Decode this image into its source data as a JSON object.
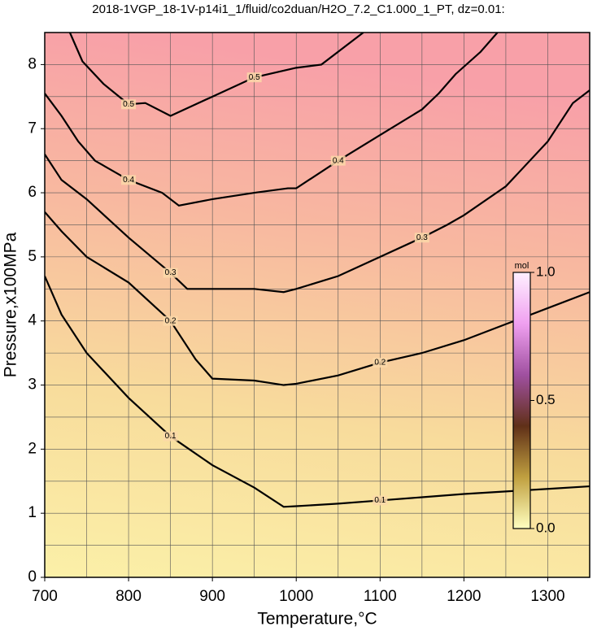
{
  "chart_data": {
    "type": "contour",
    "title": "2018-1VGP_18-1V-p14i1_1/fluid/co2duan/H2O_7.2_C1.000_1_PT, dz=0.01:",
    "x_label": "Temperature,°C",
    "y_label": "Pressure,x100MPa",
    "xlim": [
      700,
      1350
    ],
    "ylim": [
      0,
      8.5
    ],
    "xticks": [
      700,
      800,
      900,
      1000,
      1100,
      1200,
      1300
    ],
    "yticks": [
      0,
      1,
      2,
      3,
      4,
      5,
      6,
      7,
      8
    ],
    "xgrid": [
      700,
      750,
      800,
      850,
      900,
      950,
      1000,
      1050,
      1100,
      1150,
      1200,
      1250,
      1300,
      1350
    ],
    "ygrid": [
      0,
      0.5,
      1,
      1.5,
      2,
      2.5,
      3,
      3.5,
      4,
      4.5,
      5,
      5.5,
      6,
      6.5,
      7,
      7.5,
      8,
      8.5
    ],
    "grid": true,
    "contours": [
      {
        "level": 0.1,
        "x": [
          700,
          720,
          750,
          800,
          850,
          900,
          950,
          985,
          1000,
          1050,
          1100,
          1150,
          1200,
          1250,
          1300,
          1350
        ],
        "y": [
          4.7,
          4.1,
          3.5,
          2.8,
          2.2,
          1.75,
          1.4,
          1.1,
          1.11,
          1.15,
          1.2,
          1.25,
          1.3,
          1.34,
          1.38,
          1.42
        ]
      },
      {
        "level": 0.2,
        "x": [
          700,
          720,
          750,
          800,
          850,
          880,
          900,
          950,
          985,
          1000,
          1050,
          1100,
          1150,
          1200,
          1250,
          1300,
          1350
        ],
        "y": [
          5.7,
          5.4,
          5.0,
          4.6,
          4.0,
          3.4,
          3.1,
          3.07,
          3.0,
          3.02,
          3.15,
          3.35,
          3.5,
          3.7,
          3.95,
          4.2,
          4.45
        ]
      },
      {
        "level": 0.3,
        "x": [
          700,
          720,
          750,
          800,
          850,
          870,
          900,
          950,
          985,
          1000,
          1050,
          1100,
          1150,
          1180,
          1200,
          1250,
          1300,
          1330,
          1350
        ],
        "y": [
          6.6,
          6.2,
          5.9,
          5.3,
          4.75,
          4.5,
          4.5,
          4.5,
          4.45,
          4.5,
          4.7,
          5.0,
          5.3,
          5.5,
          5.65,
          6.1,
          6.8,
          7.4,
          7.6
        ]
      },
      {
        "level": 0.4,
        "x": [
          700,
          720,
          740,
          760,
          800,
          840,
          860,
          900,
          950,
          990,
          1000,
          1050,
          1100,
          1150,
          1170,
          1190,
          1220,
          1240
        ],
        "y": [
          7.55,
          7.2,
          6.8,
          6.5,
          6.2,
          6.0,
          5.8,
          5.9,
          6.0,
          6.07,
          6.07,
          6.5,
          6.9,
          7.3,
          7.55,
          7.85,
          8.2,
          8.5
        ]
      },
      {
        "level": 0.5,
        "x": [
          730,
          745,
          770,
          800,
          820,
          850,
          900,
          950,
          1000,
          1030,
          1060,
          1080
        ],
        "y": [
          8.5,
          8.05,
          7.7,
          7.38,
          7.4,
          7.2,
          7.5,
          7.8,
          7.95,
          8.0,
          8.3,
          8.5
        ]
      }
    ],
    "colorbar": {
      "title": "mol",
      "lim": [
        0,
        1
      ],
      "ticks": [
        {
          "value": 0,
          "label": "0.0"
        },
        {
          "value": 0.5,
          "label": "0.5"
        },
        {
          "value": 1,
          "label": "1.0"
        }
      ],
      "colors": [
        "#ffffc0",
        "#c0a040",
        "#603018",
        "#a050a0",
        "#f0a0f0",
        "#fff0ff"
      ]
    }
  }
}
